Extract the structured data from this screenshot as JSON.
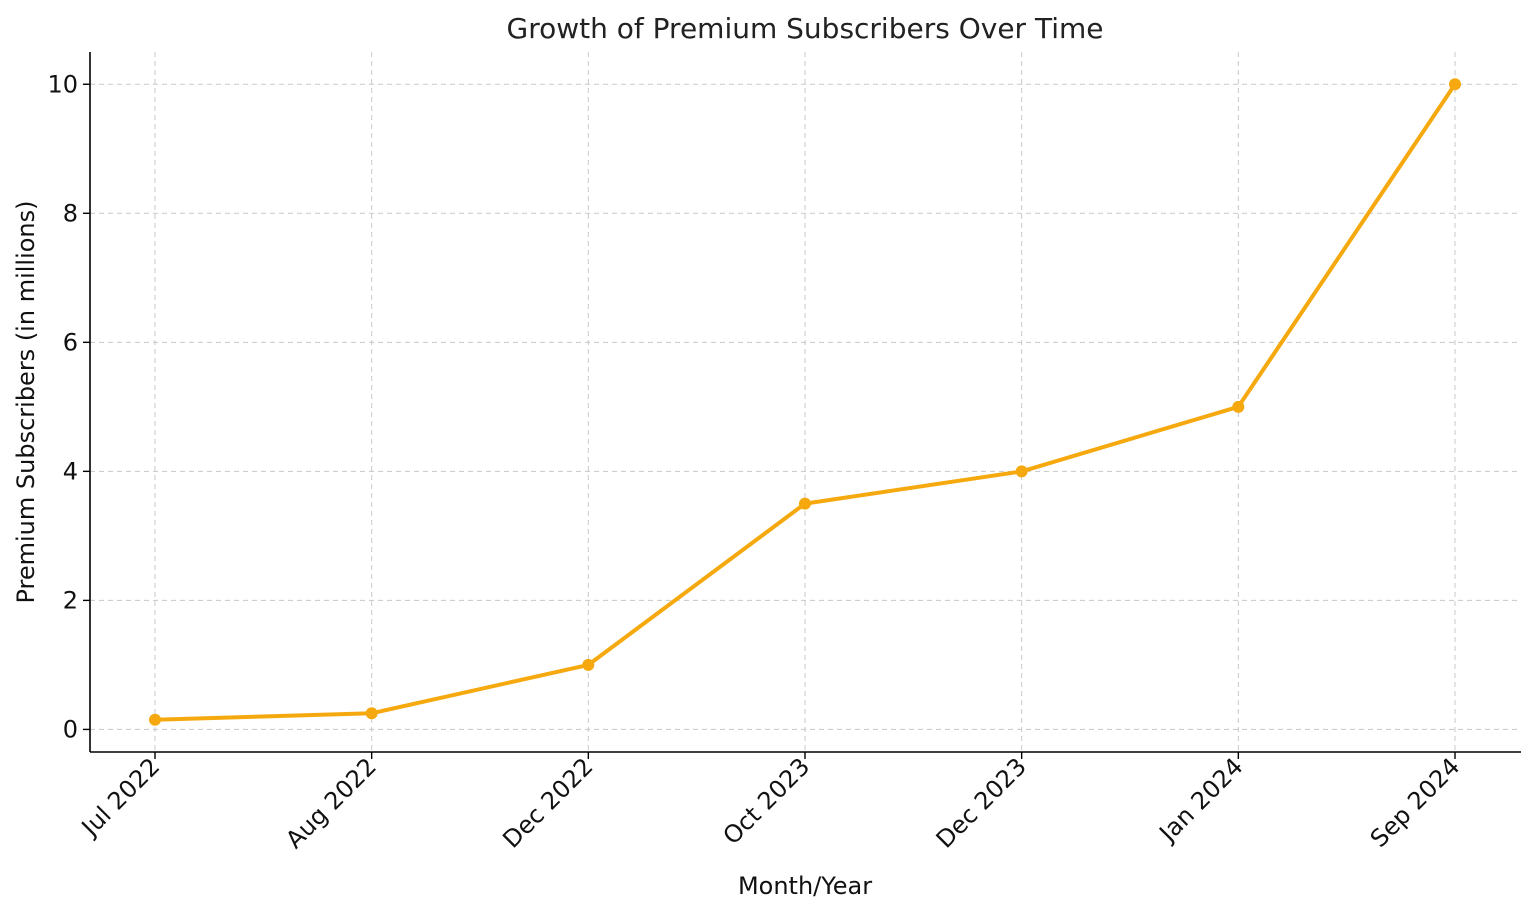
{
  "chart_data": {
    "type": "line",
    "title": "Growth of Premium Subscribers Over Time",
    "xlabel": "Month/Year",
    "ylabel": "Premium Subscribers (in millions)",
    "categories": [
      "Jul 2022",
      "Aug 2022",
      "Dec 2022",
      "Oct 2023",
      "Dec 2023",
      "Jan 2024",
      "Sep 2024"
    ],
    "series": [
      {
        "values": [
          0.15,
          0.25,
          1.0,
          3.5,
          4.0,
          5.0,
          10.0
        ],
        "color": "#f5a90f",
        "marker": "circle"
      }
    ],
    "yticks": [
      0,
      2,
      4,
      6,
      8,
      10
    ],
    "ylim": [
      -0.35,
      10.5
    ],
    "grid": true,
    "legend": "none"
  }
}
